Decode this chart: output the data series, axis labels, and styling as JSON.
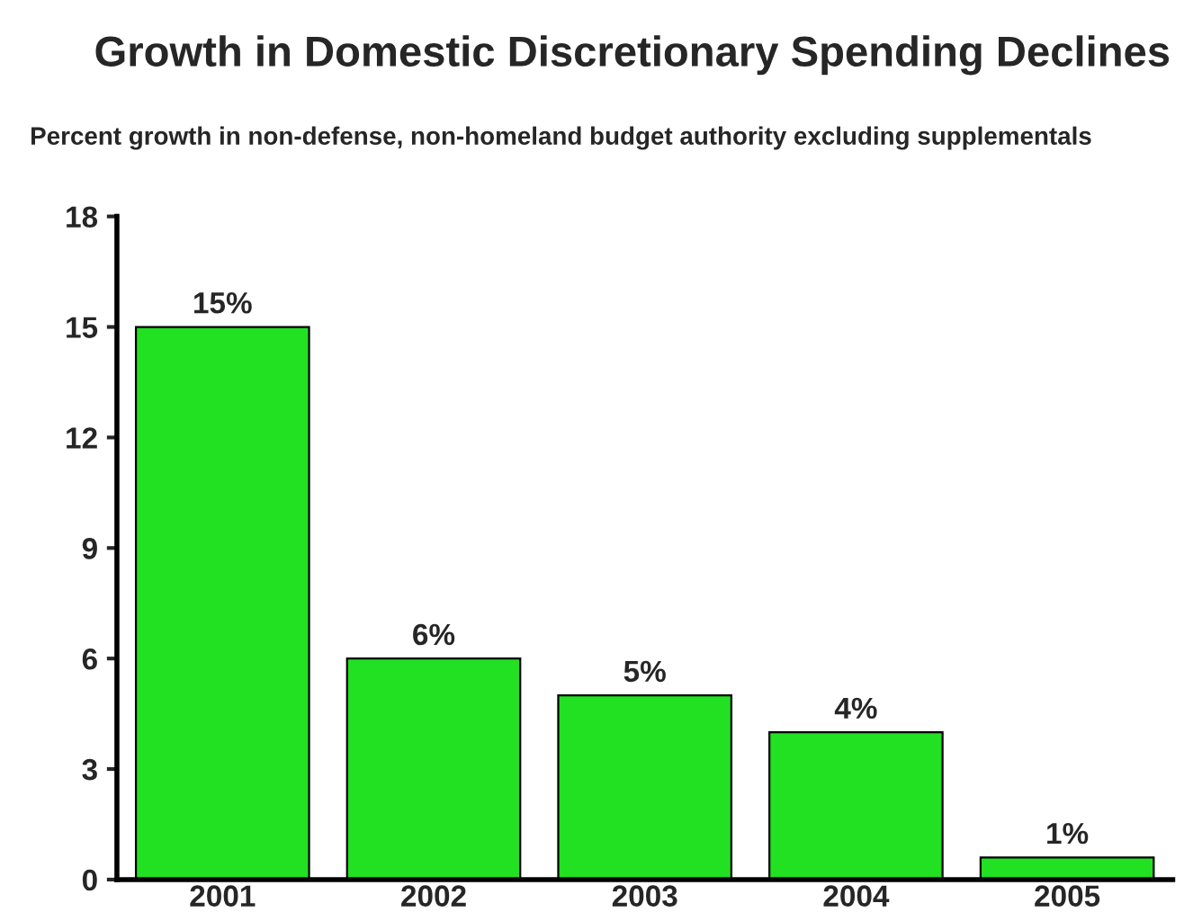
{
  "chart_data": {
    "type": "bar",
    "title": "Growth in Domestic Discretionary Spending Declines",
    "subtitle": "Percent growth in non-defense, non-homeland budget authority excluding supplementals",
    "categories": [
      "2001",
      "2002",
      "2003",
      "2004",
      "2005"
    ],
    "values": [
      15,
      6,
      5,
      4,
      0.6
    ],
    "value_labels": [
      "15%",
      "6%",
      "5%",
      "4%",
      "1%"
    ],
    "color": "#22e022",
    "ylim": [
      0,
      18
    ],
    "yticks": [
      0,
      3,
      6,
      9,
      12,
      15,
      18
    ],
    "grid": false,
    "legend": false
  }
}
